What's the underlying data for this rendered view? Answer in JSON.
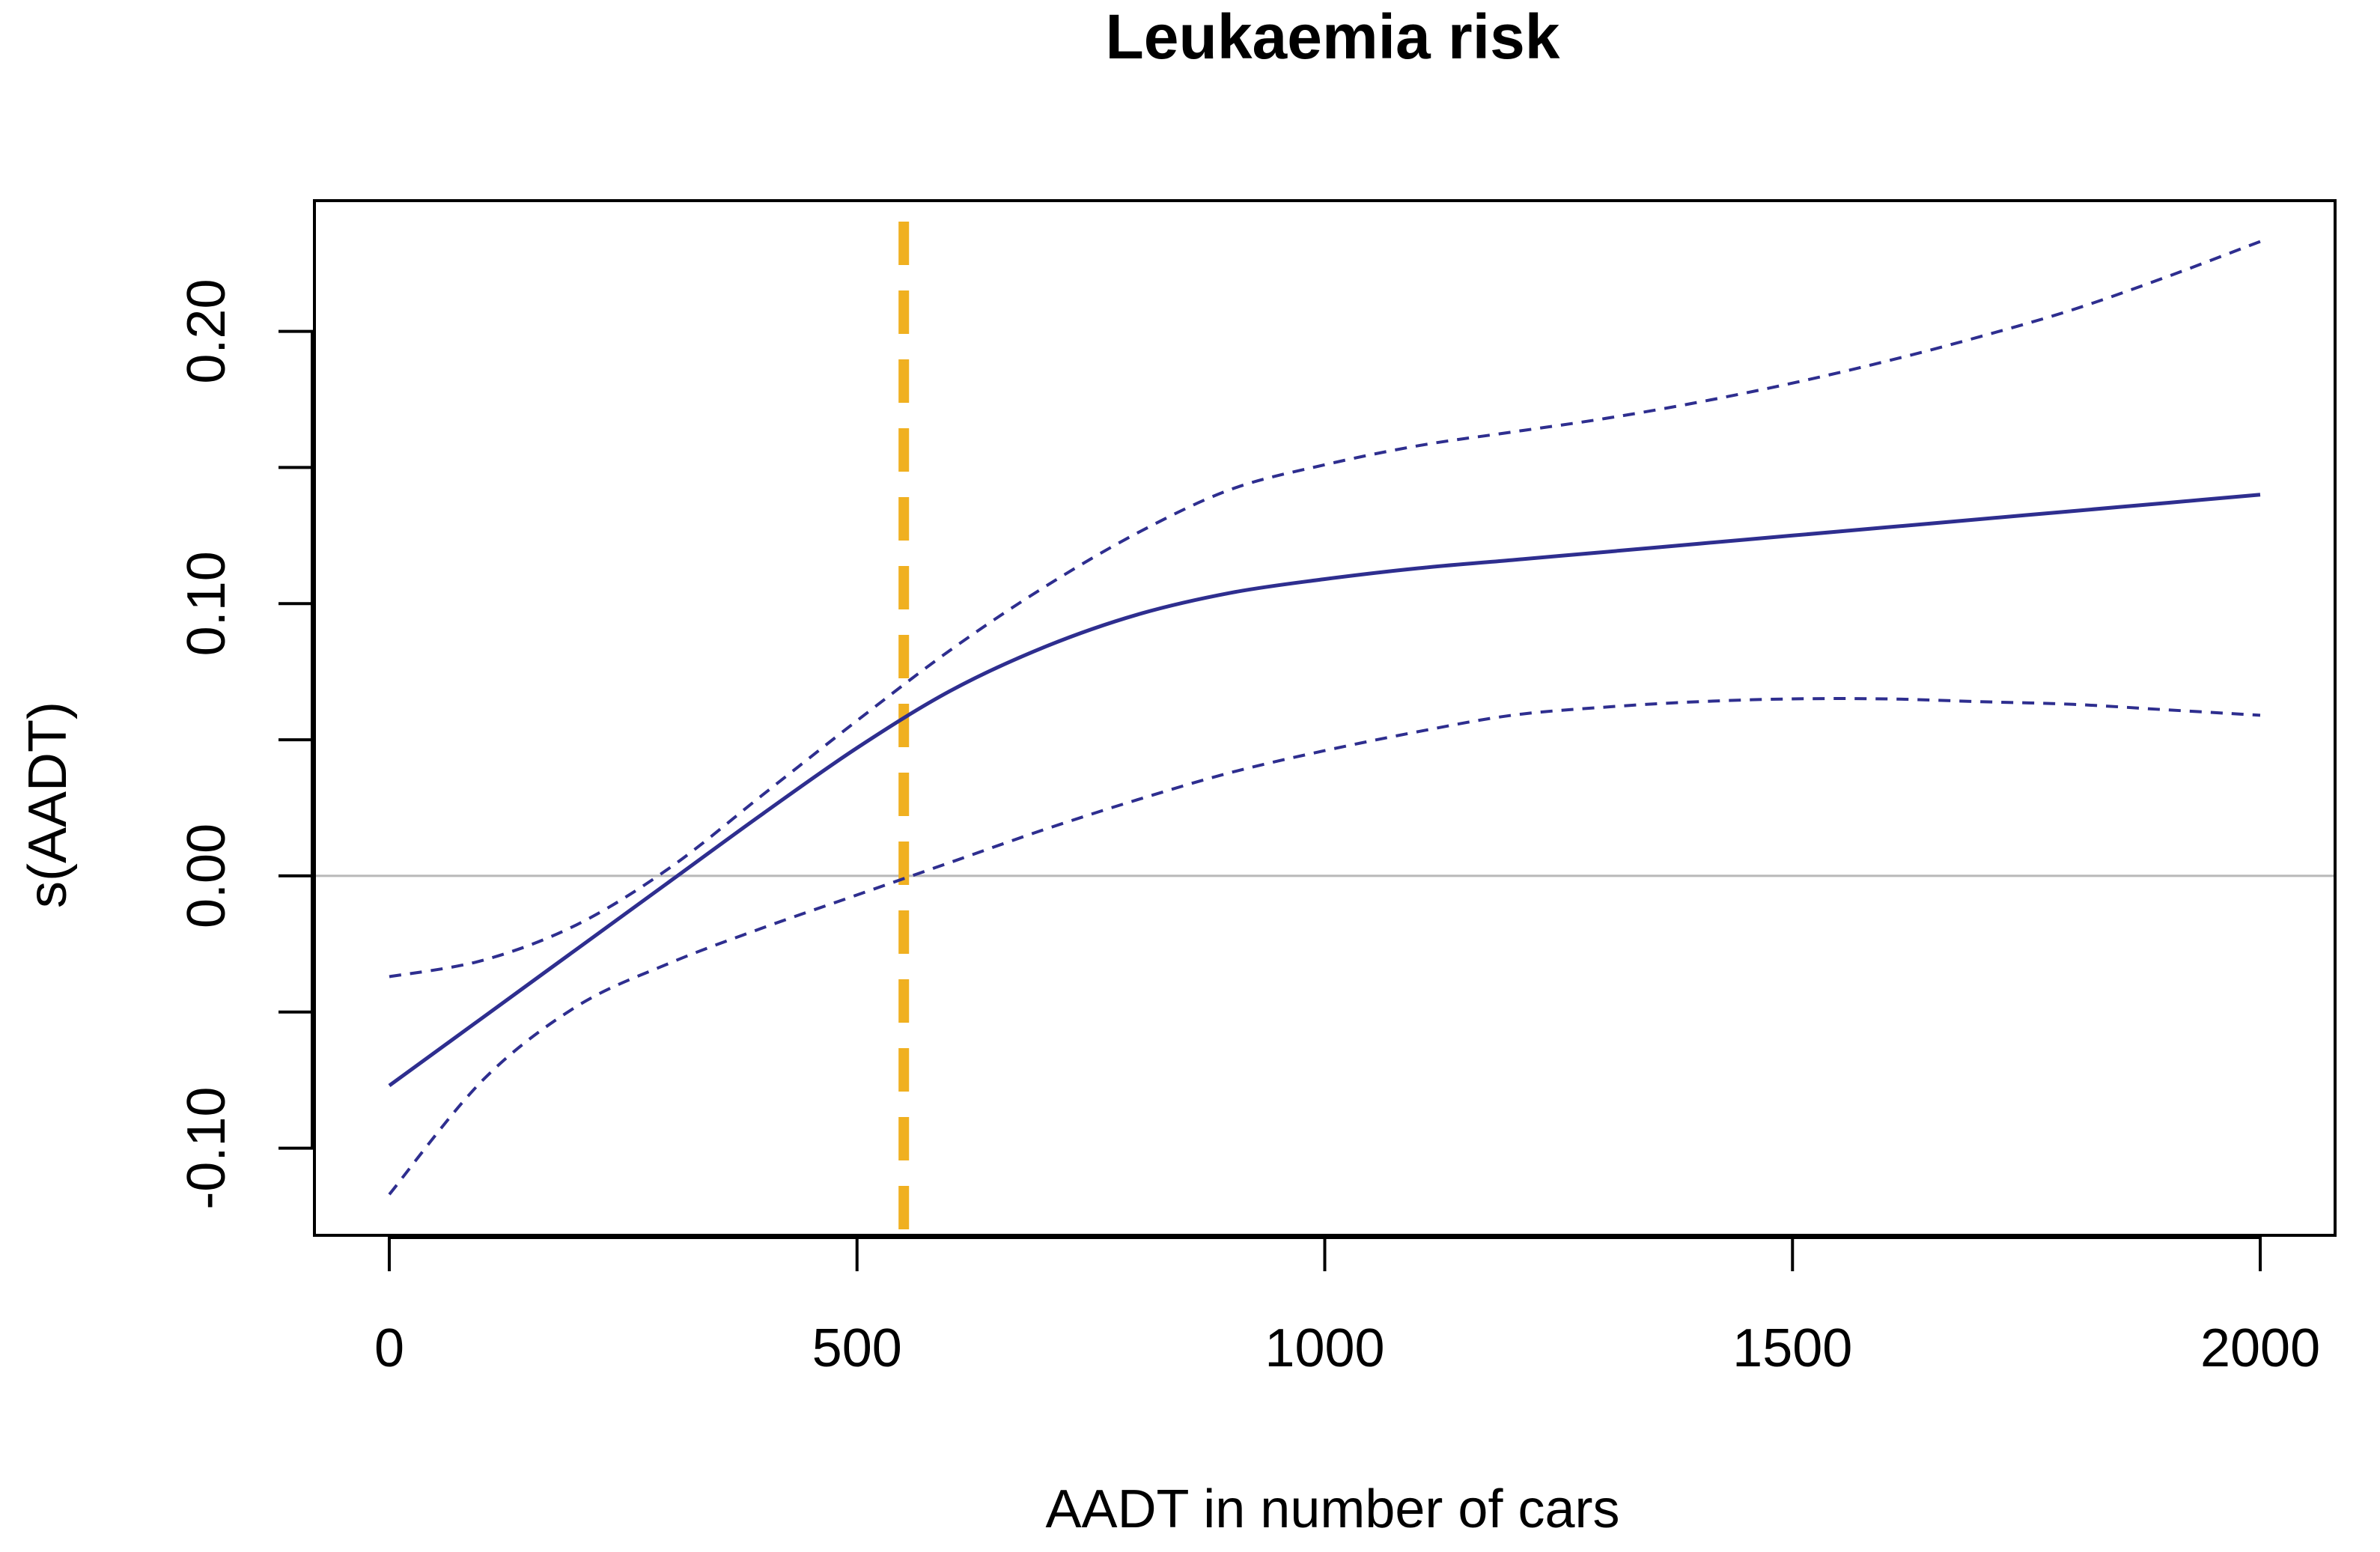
{
  "chart_data": {
    "type": "line",
    "title": "Leukaemia risk",
    "xlabel": "AADT in number of cars",
    "ylabel": "s(AADT)",
    "xlim": [
      -80,
      2080
    ],
    "ylim": [
      -0.132,
      0.248
    ],
    "x_ticks": [
      0,
      500,
      1000,
      1500,
      2000
    ],
    "x_tick_labels": [
      "0",
      "500",
      "1000",
      "1500",
      "2000"
    ],
    "y_ticks": [
      -0.1,
      -0.05,
      0.0,
      0.05,
      0.1,
      0.15,
      0.2
    ],
    "y_tick_labels": [
      "-0.10",
      "",
      "0.00",
      "",
      "0.10",
      "",
      "0.20"
    ],
    "grid": false,
    "reference_lines": [
      {
        "orientation": "horizontal",
        "value": 0.0,
        "color": "#b8b8b8",
        "style": "solid"
      },
      {
        "orientation": "vertical",
        "value": 550,
        "color": "#f0b020",
        "style": "dashed"
      }
    ],
    "x": [
      0,
      100,
      200,
      300,
      400,
      500,
      600,
      700,
      800,
      900,
      1000,
      1100,
      1200,
      1300,
      1400,
      1500,
      1600,
      1700,
      1800,
      1900,
      2000
    ],
    "series": [
      {
        "name": "s(AADT)",
        "style": "solid",
        "color": "#2e2e8f",
        "values": [
          -0.077,
          -0.052,
          -0.027,
          -0.002,
          0.023,
          0.047,
          0.068,
          0.084,
          0.096,
          0.104,
          0.109,
          0.113,
          0.116,
          0.119,
          0.122,
          0.125,
          0.128,
          0.131,
          0.134,
          0.137,
          0.14
        ]
      },
      {
        "name": "upper confidence bound",
        "style": "dashed",
        "color": "#2e2e8f",
        "values": [
          -0.037,
          -0.031,
          -0.018,
          0.003,
          0.03,
          0.057,
          0.083,
          0.106,
          0.126,
          0.142,
          0.151,
          0.158,
          0.163,
          0.168,
          0.174,
          0.181,
          0.189,
          0.198,
          0.208,
          0.22,
          0.233
        ]
      },
      {
        "name": "lower confidence bound",
        "style": "dashed",
        "color": "#2e2e8f",
        "values": [
          -0.117,
          -0.075,
          -0.048,
          -0.032,
          -0.019,
          -0.007,
          0.005,
          0.017,
          0.028,
          0.038,
          0.046,
          0.053,
          0.059,
          0.062,
          0.064,
          0.065,
          0.065,
          0.064,
          0.063,
          0.061,
          0.059
        ]
      }
    ]
  }
}
